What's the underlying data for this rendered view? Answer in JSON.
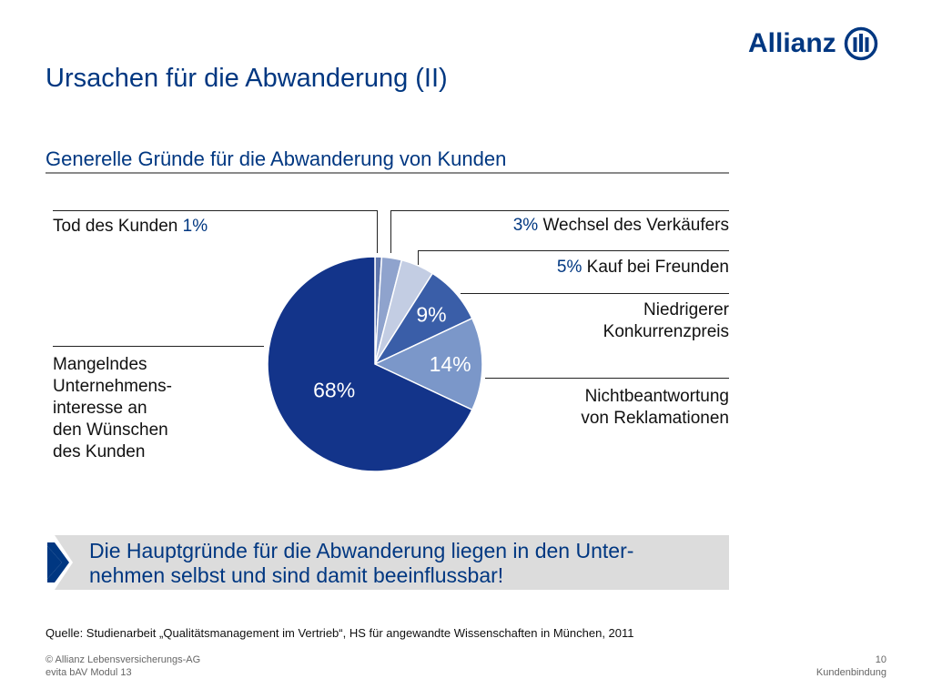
{
  "brand": {
    "name": "Allianz",
    "color": "#003781",
    "logo_icon": "allianz-eagle-icon"
  },
  "title": "Ursachen für die Abwanderung (II)",
  "subtitle": "Generelle Gründe für die Abwanderung von Kunden",
  "chart_data": {
    "type": "pie",
    "title": "",
    "slices": [
      {
        "label": "Tod des Kunden",
        "value": 1,
        "display": "1%",
        "color": "#5f76ad"
      },
      {
        "label": "Wechsel des Verkäufers",
        "value": 3,
        "display": "3%",
        "color": "#8fa3cd"
      },
      {
        "label": "Kauf bei Freunden",
        "value": 5,
        "display": "5%",
        "color": "#c3cde3"
      },
      {
        "label": "Niedrigerer Konkurrenzpreis",
        "value": 9,
        "display": "9%",
        "color": "#3a5ea8"
      },
      {
        "label": "Nichtbeantwortung von Reklamationen",
        "value": 14,
        "display": "14%",
        "color": "#7b97c9"
      },
      {
        "label": "Mangelndes Unternehmens-interesse an den Wünschen des Kunden",
        "value": 68,
        "display": "68%",
        "color": "#13348a"
      }
    ]
  },
  "labels": {
    "tod": {
      "text": "Tod des Kunden ",
      "pct": "1%"
    },
    "wechsel": {
      "pct": "3%",
      "text": " Wechsel des Verkäufers"
    },
    "kauf": {
      "pct": "5%",
      "text": " Kauf bei Freunden"
    },
    "niedrig": {
      "line1": "Niedrigerer",
      "line2": "Konkurrenzpreis"
    },
    "nicht": {
      "line1": "Nichtbeantwortung",
      "line2": "von Reklamationen"
    },
    "mangel": {
      "line1": "Mangelndes",
      "line2": "Unternehmens-",
      "line3": "interesse an",
      "line4": "den Wünschen",
      "line5": "des Kunden"
    }
  },
  "callout": {
    "line1": "Die Hauptgründe für die Abwanderung liegen in den Unter-",
    "line2": "nehmen selbst und sind damit beeinflussbar!"
  },
  "source": "Quelle: Studienarbeit „Qualitätsmanagement im Vertrieb“, HS für angewandte Wissenschaften in München, 2011",
  "footer": {
    "left1": "© Allianz Lebensversicherungs-AG",
    "left2": "evita bAV Modul 13",
    "right1": "10",
    "right2": "Kundenbindung"
  }
}
